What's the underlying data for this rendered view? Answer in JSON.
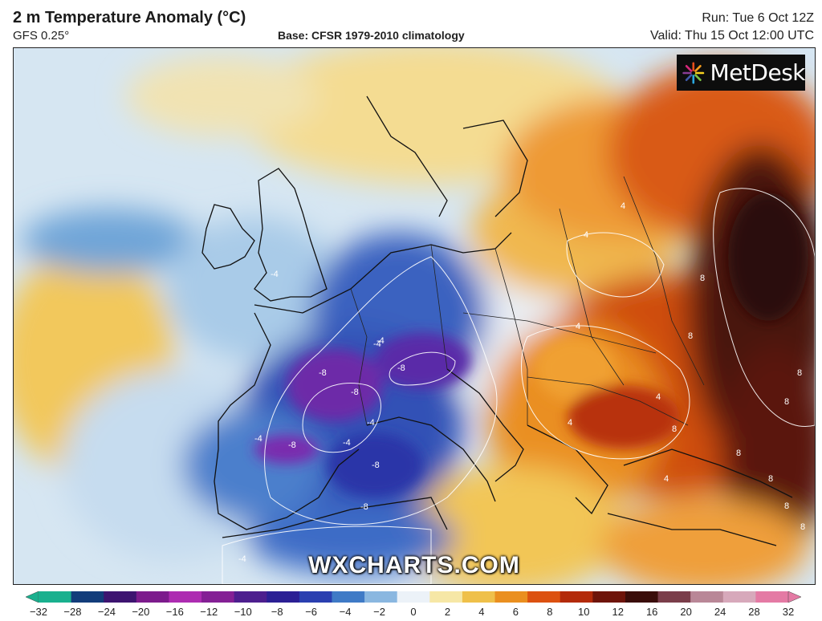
{
  "header": {
    "title": "2 m Temperature Anomaly (°C)",
    "model": "GFS 0.25°",
    "base": "Base: CFSR 1979-2010 climatology",
    "run": "Run: Tue 6 Oct 12Z",
    "valid": "Valid: Thu 15 Oct 12:00 UTC"
  },
  "logo": {
    "brand": "MetDesk"
  },
  "watermark": "WXCHARTS.COM",
  "colorbar": {
    "ticks": [
      "−32",
      "−28",
      "−24",
      "−20",
      "−16",
      "−12",
      "−10",
      "−8",
      "−6",
      "−4",
      "−2",
      "0",
      "2",
      "4",
      "6",
      "8",
      "10",
      "12",
      "16",
      "20",
      "24",
      "28",
      "32"
    ],
    "colors": [
      "#19b08e",
      "#123c7a",
      "#3d1470",
      "#7c1b8c",
      "#ad2cb1",
      "#842095",
      "#4d1e8e",
      "#2b1f94",
      "#2a3fb0",
      "#3f7ac6",
      "#8ab7e0",
      "#ecf2f8",
      "#f6e7a6",
      "#efc04a",
      "#ea8f1f",
      "#dc5110",
      "#b32a0a",
      "#6e140a",
      "#3a0d0a",
      "#7a3d4a",
      "#b98797",
      "#d7a9bb",
      "#e47aa4"
    ]
  },
  "map": {
    "region": "Europe",
    "contour_labels": [
      "-4",
      "-4",
      "-4",
      "-4",
      "-4",
      "-4",
      "-8",
      "-8",
      "-8",
      "-8",
      "-8",
      "-8",
      "-4",
      "4",
      "4",
      "4",
      "4",
      "4",
      "8",
      "8",
      "8",
      "8",
      "8",
      "8",
      "8",
      "8",
      "4",
      "8"
    ]
  }
}
